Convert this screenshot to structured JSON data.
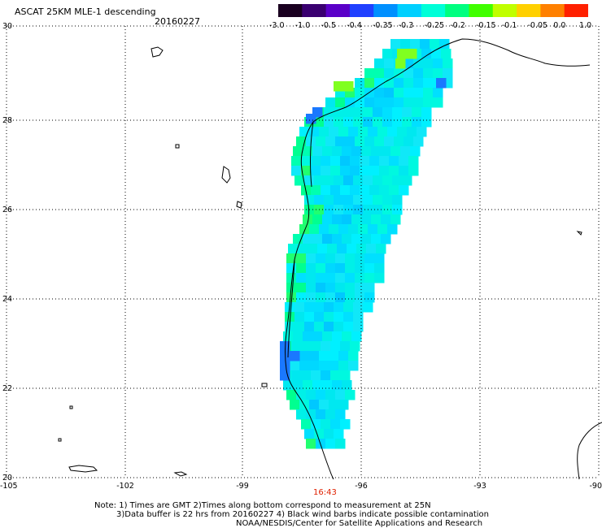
{
  "title": "ASCAT 25KM MLE-1 descending",
  "date": "20160227",
  "colorbar": {
    "labels": [
      "-3.0",
      "-1.0",
      "-0.5",
      "-0.4",
      "-0.35",
      "-0.3",
      "-0.25",
      "-0.2",
      "-0.15",
      "-0.1",
      "-0.05",
      "0.0",
      "1.0"
    ],
    "colors": [
      "#1a0020",
      "#3a0070",
      "#5a00c8",
      "#2040ff",
      "#0090ff",
      "#00d0ff",
      "#00ffd8",
      "#00ff80",
      "#40ff00",
      "#c0ff00",
      "#ffd000",
      "#ff8000",
      "#ff2000"
    ]
  },
  "axes": {
    "lon_labels": [
      "-105",
      "-102",
      "-99",
      "-96",
      "-93",
      "-90"
    ],
    "lat_labels": [
      "20",
      "22",
      "24",
      "26",
      "28",
      "30"
    ]
  },
  "pass_time": "16:43",
  "notes": {
    "line1": "Note: 1) Times are GMT 2)Times along bottom correspond to measurement at 25N",
    "line2": "3)Data buffer is 22 hrs from 20160227 4) Black wind barbs indicate possible contamination",
    "line3": "NOAA/NESDIS/Center for Satellite Applications and Research"
  },
  "swath_values": {
    "range_estimate": "mostly -0.3 to -0.25",
    "nearshore_patches": "-0.2 to -0.15",
    "low_spots": "-0.35 to -0.4"
  }
}
